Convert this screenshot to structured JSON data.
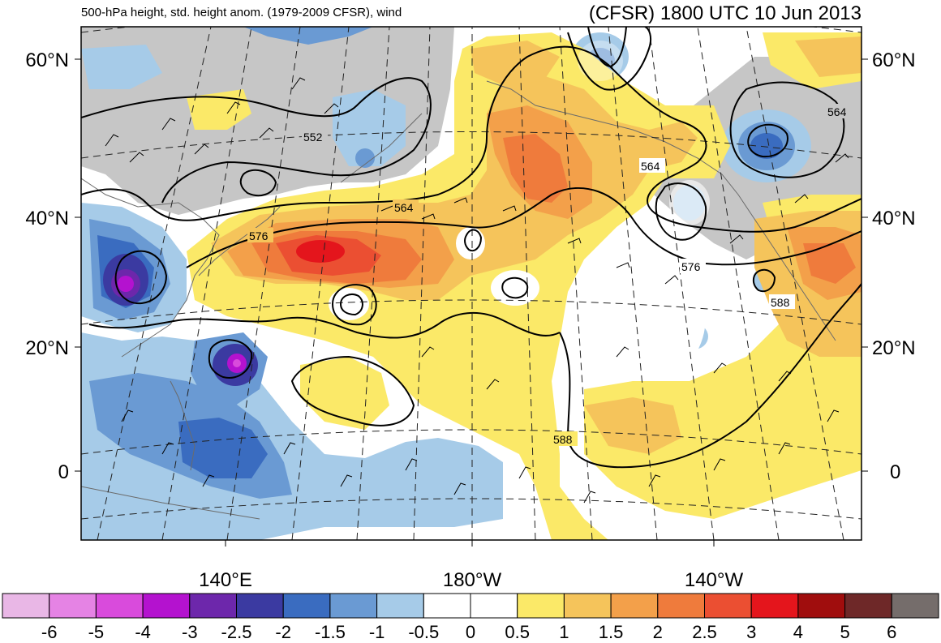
{
  "title_left": "500-hPa height, std. height anom. (1979-2009 CFSR), wind",
  "title_right": "(CFSR) 1800 UTC 10 Jun 2013",
  "lat_labels": [
    "60°N",
    "40°N",
    "20°N",
    "0"
  ],
  "lon_labels": [
    "140°E",
    "180°W",
    "140°W"
  ],
  "contour_labels": [
    "552",
    "564",
    "564",
    "564",
    "576",
    "576",
    "588",
    "588"
  ],
  "colorbar": {
    "labels": [
      "-6",
      "-5",
      "-4",
      "-3",
      "-2.5",
      "-2",
      "-1.5",
      "-1",
      "-0.5",
      "0",
      "0.5",
      "1",
      "1.5",
      "2",
      "2.5",
      "3",
      "4",
      "5",
      "6"
    ],
    "colors": [
      "#e9b7e6",
      "#e583e4",
      "#d94bdc",
      "#b412cf",
      "#6d27ab",
      "#3b3aa1",
      "#3a6cc0",
      "#6a9ad3",
      "#a6cbe8",
      "#ffffff",
      "#ffffff",
      "#fbe968",
      "#f5c45b",
      "#f3a04a",
      "#ef7b3c",
      "#eb4f32",
      "#e4151c",
      "#a00d0d",
      "#6e2828",
      "#756d6b"
    ]
  },
  "colors": {
    "land_gray": "#c6c6c6",
    "contour": "#000000"
  }
}
